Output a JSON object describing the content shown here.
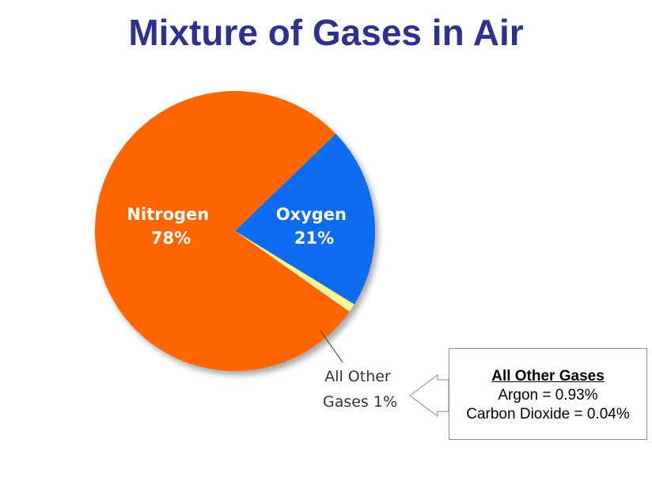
{
  "title": "Mixture of Gases in Air",
  "colors": {
    "title": "#2e3192",
    "nitrogen": "#ff6600",
    "oxygen": "#0a6cf0",
    "other": "#fff799",
    "label_text": "#ffffff",
    "other_text": "#333333"
  },
  "chart_data": {
    "type": "pie",
    "slices": [
      {
        "name": "Oxygen",
        "value": 21,
        "label": "21%"
      },
      {
        "name": "All Other Gases",
        "value": 1,
        "label": "1%"
      },
      {
        "name": "Nitrogen",
        "value": 78,
        "label": "78%"
      }
    ],
    "other_label": {
      "line1": "All Other",
      "line2": "Gases 1%"
    }
  },
  "callout": {
    "heading": "All Other Gases",
    "lines": [
      "Argon = 0.93%",
      "Carbon Dioxide = 0.04%"
    ]
  }
}
